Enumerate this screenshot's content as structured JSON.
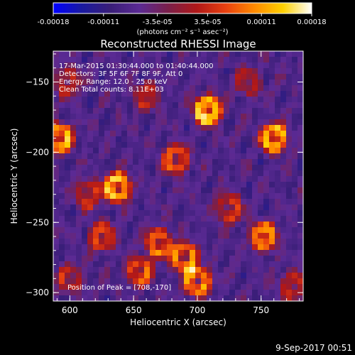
{
  "chart_data": {
    "type": "heatmap",
    "title": "Reconstructed RHESSI Image",
    "xlabel": "Heliocentric X (arcsec)",
    "ylabel": "Heliocentric Y (arcsec)",
    "xlim": [
      587,
      783
    ],
    "ylim": [
      -306,
      -128
    ],
    "x_ticks": [
      "600",
      "650",
      "700",
      "750"
    ],
    "y_ticks": [
      "-150",
      "-200",
      "-250",
      "-300"
    ],
    "colorbar": {
      "range": [
        -0.00018,
        0.00018
      ],
      "ticks": [
        "-0.00018",
        "-0.00011",
        "-3.5e-05",
        "3.5e-05",
        "0.00011",
        "0.00018"
      ],
      "label": "(photons cm⁻² s⁻¹ asec⁻²)",
      "colormap": [
        "#0000ff",
        "#1a1aa0",
        "#3a1e78",
        "#5b2a94",
        "#7a1f4a",
        "#b01818",
        "#e84010",
        "#ff8a00",
        "#ffd000",
        "#ffffff"
      ]
    },
    "annotations": [
      "17-Mar-2015 01:30:44.000 to 01:40:44.000",
      "Detectors: 3F 5F 6F 7F 8F 9F, Att 0",
      "Energy Range: 12.0 - 25.0 keV",
      "Clean     Total counts: 8.11E+03"
    ],
    "peak_label": "Position of Peak = [708,-170]",
    "peak": {
      "x": 708,
      "y": -170
    },
    "sources": [
      {
        "x": 708,
        "y": -170,
        "intensity": 1.0
      },
      {
        "x": 592,
        "y": -190,
        "intensity": 0.85
      },
      {
        "x": 760,
        "y": -190,
        "intensity": 0.9
      },
      {
        "x": 637,
        "y": -225,
        "intensity": 0.9
      },
      {
        "x": 683,
        "y": -205,
        "intensity": 0.6
      },
      {
        "x": 615,
        "y": -230,
        "intensity": 0.5
      },
      {
        "x": 670,
        "y": -265,
        "intensity": 0.7
      },
      {
        "x": 690,
        "y": -275,
        "intensity": 0.75
      },
      {
        "x": 700,
        "y": -292,
        "intensity": 0.8
      },
      {
        "x": 655,
        "y": -285,
        "intensity": 0.6
      },
      {
        "x": 625,
        "y": -260,
        "intensity": 0.55
      },
      {
        "x": 752,
        "y": -260,
        "intensity": 0.75
      },
      {
        "x": 725,
        "y": -240,
        "intensity": 0.5
      },
      {
        "x": 598,
        "y": -150,
        "intensity": 0.45
      },
      {
        "x": 660,
        "y": -160,
        "intensity": 0.4
      },
      {
        "x": 740,
        "y": -150,
        "intensity": 0.35
      },
      {
        "x": 775,
        "y": -295,
        "intensity": 0.45
      },
      {
        "x": 600,
        "y": -290,
        "intensity": 0.4
      }
    ]
  },
  "footer": {
    "date": "9-Sep-2017 00:51"
  }
}
